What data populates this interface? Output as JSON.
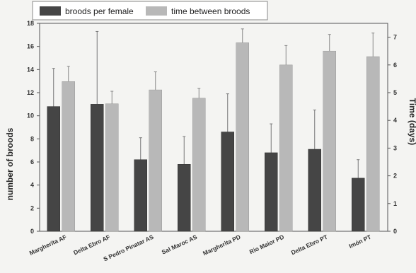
{
  "chart_data": {
    "type": "bar",
    "categories": [
      "Margherita AF",
      "Delta Ebro AF",
      "S Pedro Pinatar AS",
      "Sal Maroc AS",
      "Margherita PD",
      "Rio Maior PD",
      "Delta Ebro PT",
      "Imón PT"
    ],
    "series": [
      {
        "name": "broods per female",
        "axis": "left",
        "color": "#454545",
        "values": [
          10.8,
          11.0,
          6.2,
          5.8,
          8.6,
          6.8,
          7.1,
          4.6
        ],
        "errors": [
          3.3,
          6.3,
          1.9,
          2.4,
          3.3,
          2.5,
          3.4,
          1.6
        ]
      },
      {
        "name": "time between broods",
        "axis": "right",
        "color": "#b8b8b8",
        "values": [
          5.4,
          4.6,
          5.1,
          4.8,
          6.8,
          6.0,
          6.5,
          6.3
        ],
        "errors": [
          0.55,
          0.45,
          0.65,
          0.35,
          0.5,
          0.7,
          0.6,
          0.85
        ]
      }
    ],
    "ylabel": "number of broods",
    "y2label": "Time (days)",
    "ylim": [
      0,
      18
    ],
    "y2lim": [
      0,
      7.5
    ],
    "yticks": [
      0,
      2,
      4,
      6,
      8,
      10,
      12,
      14,
      16,
      18
    ],
    "y2ticks": [
      0,
      1,
      2,
      3,
      4,
      5,
      6,
      7
    ],
    "legend": "top-left",
    "grid": false
  }
}
